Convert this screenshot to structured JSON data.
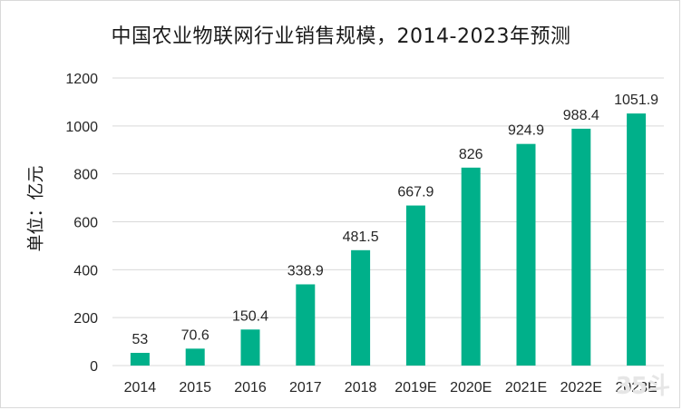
{
  "chart_data": {
    "type": "bar",
    "title": "中国农业物联网行业销售规模，2014-2023年预测",
    "ylabel": "单位：亿元",
    "xlabel": "",
    "categories": [
      "2014",
      "2015",
      "2016",
      "2017",
      "2018",
      "2019E",
      "2020E",
      "2021E",
      "2022E",
      "2023E"
    ],
    "values": [
      53,
      70.6,
      150.4,
      338.9,
      481.5,
      667.9,
      826,
      924.9,
      988.4,
      1051.9
    ],
    "value_labels": [
      "53",
      "70.6",
      "150.4",
      "338.9",
      "481.5",
      "667.9",
      "826",
      "924.9",
      "988.4",
      "1051.9"
    ],
    "ylim": [
      0,
      1200
    ],
    "yticks": [
      "0",
      "200",
      "400",
      "600",
      "800",
      "1000",
      "1200"
    ],
    "grid": true,
    "legend": "none",
    "colors": {
      "bar": "#00b08a",
      "grid": "#d9d9d9",
      "text": "#262626"
    }
  },
  "watermark": "35斗"
}
